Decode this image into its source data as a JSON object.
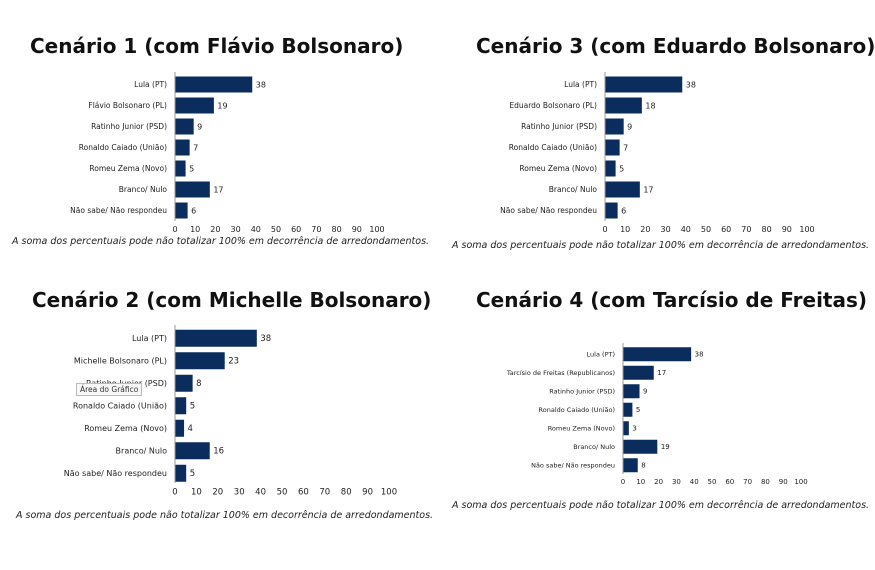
{
  "chart_data": [
    {
      "type": "bar",
      "orientation": "horizontal",
      "title": "Cenário 1 (com Flávio Bolsonaro)",
      "categories": [
        "Lula (PT)",
        "Flávio Bolsonaro (PL)",
        "Ratinho Junior (PSD)",
        "Ronaldo Caiado (União)",
        "Romeu Zema (Novo)",
        "Branco/ Nulo",
        "Não sabe/ Não respondeu"
      ],
      "values": [
        38,
        19,
        9,
        7,
        5,
        17,
        6
      ],
      "xlim": [
        0,
        100
      ],
      "ticks": [
        0,
        10,
        20,
        30,
        40,
        50,
        60,
        70,
        80,
        90,
        100
      ],
      "note": "A soma dos percentuais pode não totalizar 100% em decorrência de arredondamentos.",
      "bar_color": "#0a2d5e"
    },
    {
      "type": "bar",
      "orientation": "horizontal",
      "title": "Cenário 3 (com Eduardo Bolsonaro)",
      "categories": [
        "Lula (PT)",
        "Eduardo Bolsonaro (PL)",
        "Ratinho Junior (PSD)",
        "Ronaldo Caiado (União)",
        "Romeu Zema (Novo)",
        "Branco/ Nulo",
        "Não sabe/ Não respondeu"
      ],
      "values": [
        38,
        18,
        9,
        7,
        5,
        17,
        6
      ],
      "xlim": [
        0,
        100
      ],
      "ticks": [
        0,
        10,
        20,
        30,
        40,
        50,
        60,
        70,
        80,
        90,
        100
      ],
      "note": "A soma dos percentuais pode não totalizar 100% em decorrência de arredondamentos.",
      "bar_color": "#0a2d5e"
    },
    {
      "type": "bar",
      "orientation": "horizontal",
      "title": "Cenário 2 (com Michelle Bolsonaro)",
      "categories": [
        "Lula (PT)",
        "Michelle Bolsonaro (PL)",
        "Ratinho Junior (PSD)",
        "Ronaldo Caiado (União)",
        "Romeu Zema (Novo)",
        "Branco/ Nulo",
        "Não sabe/ Não respondeu"
      ],
      "values": [
        38,
        23,
        8,
        5,
        4,
        16,
        5
      ],
      "xlim": [
        0,
        100
      ],
      "ticks": [
        0,
        10,
        20,
        30,
        40,
        50,
        60,
        70,
        80,
        90,
        100
      ],
      "note": "A soma dos percentuais pode não totalizar 100% em decorrência de arredondamentos.",
      "bar_color": "#0a2d5e",
      "tooltip": "Área do Gráfico"
    },
    {
      "type": "bar",
      "orientation": "horizontal",
      "title": "Cenário 4 (com Tarcísio de Freitas)",
      "categories": [
        "Lula (PT)",
        "Tarcísio de Freitas (Republicanos)",
        "Ratinho Junior (PSD)",
        "Ronaldo Caiado (União)",
        "Romeu Zema (Novo)",
        "Branco/ Nulo",
        "Não sabe/ Não respondeu"
      ],
      "values": [
        38,
        17,
        9,
        5,
        3,
        19,
        8
      ],
      "xlim": [
        0,
        100
      ],
      "ticks": [
        0,
        10,
        20,
        30,
        40,
        50,
        60,
        70,
        80,
        90,
        100
      ],
      "note": "A soma dos percentuais pode não totalizar 100% em decorrência de arredondamentos.",
      "bar_color": "#0a2d5e"
    }
  ]
}
